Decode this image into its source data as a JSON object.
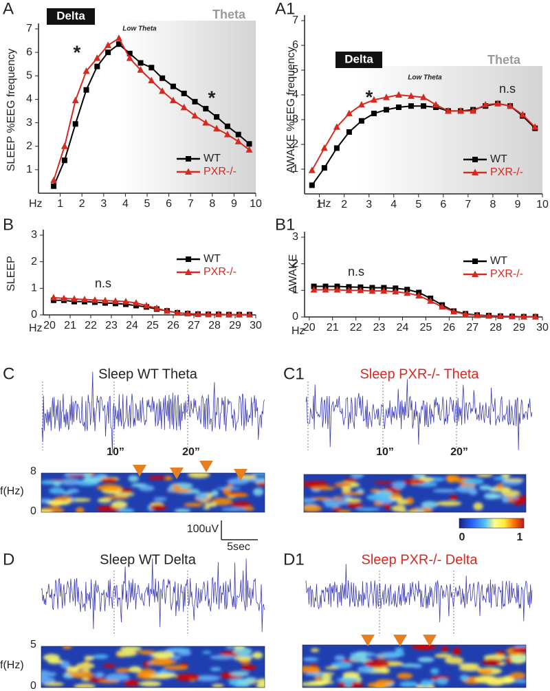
{
  "chart_data": [
    {
      "type": "line",
      "panel_label": "A",
      "ylabel": "SLEEP %EEG frequency",
      "xlabel": "Hz",
      "annotations": [
        "Delta",
        "Theta",
        "Low Theta",
        "*",
        "*"
      ],
      "x": [
        0.7,
        1.2,
        1.7,
        2.2,
        2.7,
        3.2,
        3.7,
        4.2,
        4.7,
        5.2,
        5.7,
        6.2,
        6.7,
        7.2,
        7.7,
        8.2,
        8.7,
        9.2,
        9.7
      ],
      "series": [
        {
          "name": "WT",
          "color": "#000000",
          "marker": "square",
          "values": [
            0.3,
            1.4,
            2.95,
            4.4,
            5.4,
            6.0,
            6.35,
            5.95,
            5.55,
            5.35,
            4.9,
            4.55,
            4.25,
            3.9,
            3.6,
            3.25,
            2.85,
            2.5,
            2.1
          ]
        },
        {
          "name": "PXR-/-",
          "color": "#d42a20",
          "marker": "triangle",
          "values": [
            0.55,
            2.0,
            3.95,
            5.2,
            5.75,
            6.3,
            6.6,
            5.75,
            5.25,
            4.8,
            4.35,
            3.95,
            3.65,
            3.3,
            3.0,
            2.75,
            2.5,
            2.2,
            1.85
          ]
        }
      ],
      "xlim": [
        0,
        10
      ],
      "ylim": [
        0,
        7
      ],
      "xticks": [
        1,
        2,
        3,
        4,
        5,
        6,
        7,
        8,
        9,
        10
      ],
      "yticks": [
        1,
        2,
        3,
        4,
        5,
        6,
        7
      ],
      "legend": "lower right"
    },
    {
      "type": "line",
      "panel_label": "A1",
      "ylabel": "AWAKE %EEG frequency",
      "xlabel": "Hz",
      "annotations": [
        "Delta",
        "Theta",
        "Low Theta",
        "*",
        "n.s"
      ],
      "x": [
        0.7,
        1.2,
        1.7,
        2.2,
        2.7,
        3.2,
        3.7,
        4.2,
        4.7,
        5.2,
        5.7,
        6.2,
        6.7,
        7.2,
        7.7,
        8.2,
        8.7,
        9.2,
        9.7
      ],
      "series": [
        {
          "name": "WT",
          "color": "#000000",
          "marker": "square",
          "values": [
            0.35,
            1.05,
            1.85,
            2.5,
            2.95,
            3.25,
            3.4,
            3.5,
            3.55,
            3.55,
            3.5,
            3.35,
            3.35,
            3.4,
            3.55,
            3.65,
            3.55,
            3.15,
            2.65
          ]
        },
        {
          "name": "PXR-/-",
          "color": "#d42a20",
          "marker": "triangle",
          "values": [
            0.95,
            1.85,
            2.7,
            3.25,
            3.6,
            3.8,
            3.9,
            4.0,
            3.95,
            3.9,
            3.6,
            3.35,
            3.35,
            3.35,
            3.6,
            3.65,
            3.55,
            3.2,
            2.7
          ]
        }
      ],
      "xlim": [
        0.4,
        10
      ],
      "ylim": [
        0,
        7
      ],
      "xticks": [
        1,
        2,
        3,
        4,
        5,
        6,
        7,
        8,
        9,
        10
      ],
      "yticks": [
        1,
        2,
        3,
        4,
        5,
        6,
        7
      ],
      "legend": "lower right"
    },
    {
      "type": "line",
      "panel_label": "B",
      "ylabel": "SLEEP",
      "xlabel": "Hz",
      "annotations": [
        "n.s"
      ],
      "x": [
        20.2,
        20.7,
        21.2,
        21.7,
        22.2,
        22.7,
        23.2,
        23.7,
        24.2,
        24.7,
        25.2,
        25.7,
        26.2,
        26.7,
        27.2,
        27.7,
        28.2,
        28.7,
        29.2,
        29.7
      ],
      "series": [
        {
          "name": "WT",
          "color": "#000000",
          "marker": "square",
          "values": [
            0.55,
            0.55,
            0.5,
            0.5,
            0.48,
            0.45,
            0.43,
            0.4,
            0.35,
            0.3,
            0.22,
            0.15,
            0.08,
            0.05,
            0.03,
            0.02,
            0.02,
            0.01,
            0.01,
            0.01
          ]
        },
        {
          "name": "PXR-/-",
          "color": "#d42a20",
          "marker": "triangle",
          "values": [
            0.65,
            0.62,
            0.6,
            0.58,
            0.56,
            0.54,
            0.52,
            0.5,
            0.45,
            0.35,
            0.25,
            0.15,
            0.08,
            0.05,
            0.03,
            0.02,
            0.02,
            0.01,
            0.01,
            0.01
          ]
        }
      ],
      "xlim": [
        19.7,
        30
      ],
      "ylim": [
        0,
        3
      ],
      "xticks": [
        20,
        21,
        22,
        23,
        24,
        25,
        26,
        27,
        28,
        29,
        30
      ],
      "yticks": [
        0,
        1,
        2,
        3
      ],
      "legend": "upper right"
    },
    {
      "type": "line",
      "panel_label": "B1",
      "ylabel": "AWAKE",
      "xlabel": "Hz",
      "annotations": [
        "n.s"
      ],
      "x": [
        20.2,
        20.7,
        21.2,
        21.7,
        22.2,
        22.7,
        23.2,
        23.7,
        24.2,
        24.7,
        25.2,
        25.7,
        26.2,
        26.7,
        27.2,
        27.7,
        28.2,
        28.7,
        29.2,
        29.7
      ],
      "series": [
        {
          "name": "WT",
          "color": "#000000",
          "marker": "square",
          "values": [
            1.15,
            1.15,
            1.15,
            1.13,
            1.12,
            1.1,
            1.1,
            1.08,
            1.03,
            0.92,
            0.7,
            0.45,
            0.22,
            0.12,
            0.07,
            0.05,
            0.03,
            0.02,
            0.01,
            0.01
          ]
        },
        {
          "name": "PXR-/-",
          "color": "#d42a20",
          "marker": "triangle",
          "values": [
            1.02,
            1.02,
            1.02,
            1.0,
            1.0,
            0.98,
            0.98,
            0.95,
            0.9,
            0.8,
            0.6,
            0.38,
            0.2,
            0.1,
            0.06,
            0.04,
            0.03,
            0.02,
            0.01,
            0.01
          ]
        }
      ],
      "xlim": [
        19.8,
        30
      ],
      "ylim": [
        0,
        3
      ],
      "xticks": [
        20,
        21,
        22,
        23,
        24,
        25,
        26,
        27,
        28,
        29,
        30
      ],
      "yticks": [
        0,
        1,
        2,
        3
      ],
      "legend": "upper right"
    }
  ],
  "panels": [
    {
      "label": "C",
      "title": "Sleep WT Theta",
      "title_color": "#222222",
      "time_labels": [
        "10”",
        "20”"
      ],
      "ylabel": "f(Hz)",
      "yticks": [
        8,
        0
      ]
    },
    {
      "label": "C1",
      "title": "Sleep PXR-/- Theta",
      "title_color": "#d42a20",
      "time_labels": [
        "10”",
        "20”"
      ]
    },
    {
      "label": "D",
      "title": "Sleep WT Delta",
      "title_color": "#222222",
      "ylabel": "f(Hz)",
      "yticks": [
        5,
        0
      ]
    },
    {
      "label": "D1",
      "title": "Sleep PXR-/- Delta",
      "title_color": "#d42a20"
    }
  ],
  "scale_bar": {
    "amplitude": "100uV",
    "time": "5sec"
  },
  "colorbar": {
    "ticks": [
      0,
      1
    ]
  }
}
